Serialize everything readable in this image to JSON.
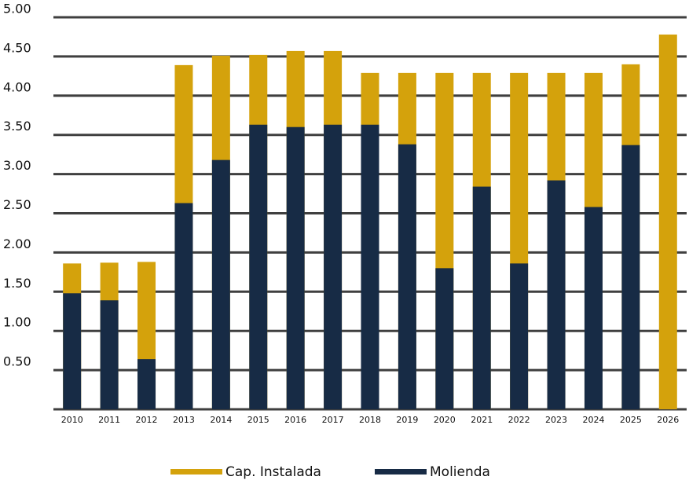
{
  "chart_data": {
    "type": "bar",
    "overlap": true,
    "categories": [
      "2010",
      "2011",
      "2012",
      "2013",
      "2014",
      "2015",
      "2016",
      "2017",
      "2018",
      "2019",
      "2020",
      "2021",
      "2022",
      "2023",
      "2024",
      "2025",
      "2026"
    ],
    "series": [
      {
        "name": "Cap. Instalada",
        "color": "#d4a20c",
        "values": [
          1.86,
          1.87,
          1.88,
          4.39,
          4.51,
          4.52,
          4.57,
          4.57,
          4.29,
          4.29,
          4.29,
          4.29,
          4.29,
          4.29,
          4.29,
          4.4,
          4.78
        ]
      },
      {
        "name": "Molienda",
        "color": "#172b45",
        "values": [
          1.48,
          1.39,
          0.64,
          2.63,
          3.18,
          3.63,
          3.6,
          3.63,
          3.63,
          3.38,
          1.8,
          2.84,
          1.86,
          2.92,
          2.58,
          3.37,
          null
        ]
      }
    ],
    "ylim": [
      0,
      5
    ],
    "yticks": [
      {
        "value": 0.5,
        "label": "0.50"
      },
      {
        "value": 1,
        "label": "1.00"
      },
      {
        "value": 1.5,
        "label": "1.50"
      },
      {
        "value": 2,
        "label": "2.00"
      },
      {
        "value": 2.5,
        "label": "2.50"
      },
      {
        "value": 3,
        "label": "3.00"
      },
      {
        "value": 3.5,
        "label": "3.50"
      },
      {
        "value": 4,
        "label": "4.00"
      },
      {
        "value": 4.5,
        "label": "4.50"
      },
      {
        "value": 5,
        "label": "5.00"
      }
    ],
    "grid": true,
    "legend": "bottom"
  }
}
